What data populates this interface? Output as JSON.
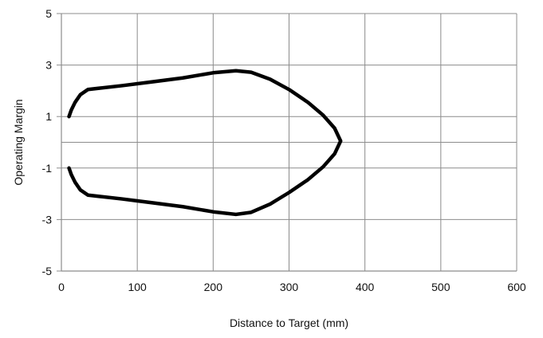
{
  "chart_data": {
    "type": "line",
    "title": "",
    "xlabel": "Distance to Target (mm)",
    "ylabel": "Operating Margin",
    "xlim": [
      0,
      600
    ],
    "ylim": [
      -5,
      5
    ],
    "x_ticks": [
      0,
      100,
      200,
      300,
      400,
      500,
      600
    ],
    "y_ticks": [
      -5,
      -3,
      -1,
      1,
      3,
      5
    ],
    "x_tick_labels": [
      "0",
      "100",
      "200",
      "300",
      "400",
      "500",
      "600"
    ],
    "y_tick_labels": [
      "-5",
      "-3",
      "-1",
      "1",
      "3",
      "5"
    ],
    "grid": true,
    "legend": "none",
    "colors": {
      "line": "#000000",
      "grid": "#8c8c8c",
      "axis": "#8c8c8c",
      "text": "#111111"
    },
    "series": [
      {
        "points": [
          [
            10,
            1.0
          ],
          [
            13,
            1.25
          ],
          [
            18,
            1.55
          ],
          [
            25,
            1.85
          ],
          [
            35,
            2.05
          ],
          [
            50,
            2.1
          ],
          [
            80,
            2.2
          ],
          [
            120,
            2.35
          ],
          [
            160,
            2.5
          ],
          [
            200,
            2.7
          ],
          [
            230,
            2.78
          ],
          [
            250,
            2.72
          ],
          [
            275,
            2.45
          ],
          [
            300,
            2.05
          ],
          [
            325,
            1.55
          ],
          [
            345,
            1.05
          ],
          [
            360,
            0.55
          ],
          [
            368,
            0.05
          ],
          [
            360,
            -0.45
          ],
          [
            345,
            -0.95
          ],
          [
            325,
            -1.45
          ],
          [
            300,
            -1.95
          ],
          [
            275,
            -2.4
          ],
          [
            250,
            -2.72
          ],
          [
            230,
            -2.8
          ],
          [
            200,
            -2.7
          ],
          [
            160,
            -2.5
          ],
          [
            120,
            -2.35
          ],
          [
            80,
            -2.2
          ],
          [
            50,
            -2.1
          ],
          [
            35,
            -2.05
          ],
          [
            25,
            -1.85
          ],
          [
            18,
            -1.55
          ],
          [
            13,
            -1.25
          ],
          [
            10,
            -1.0
          ]
        ]
      }
    ]
  }
}
